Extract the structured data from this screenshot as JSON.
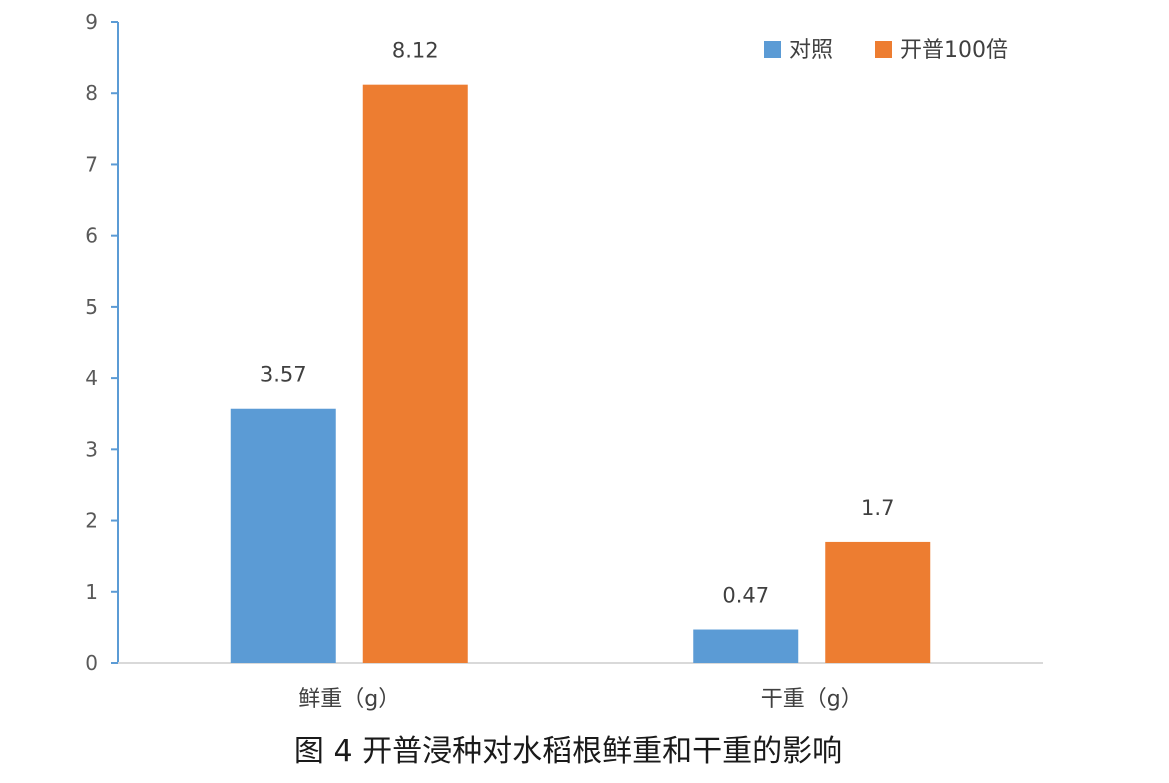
{
  "chart_data": {
    "type": "bar",
    "categories": [
      "鲜重（g）",
      "干重（g）"
    ],
    "series": [
      {
        "name": "对照",
        "color": "#5B9BD5",
        "values": [
          3.57,
          0.47
        ],
        "labels": [
          "3.57",
          "0.47"
        ]
      },
      {
        "name": "开普100倍",
        "color": "#ED7D31",
        "values": [
          8.12,
          1.7
        ],
        "labels": [
          "8.12",
          "1.7"
        ]
      }
    ],
    "ylim": [
      0,
      9
    ],
    "yticks": [
      "0",
      "1",
      "2",
      "3",
      "4",
      "5",
      "6",
      "7",
      "8",
      "9"
    ],
    "legend_position": "top-right",
    "grid": false,
    "axis_color": "#5B9BD5"
  },
  "caption": "图 4  开普浸种对水稻根鲜重和干重的影响"
}
